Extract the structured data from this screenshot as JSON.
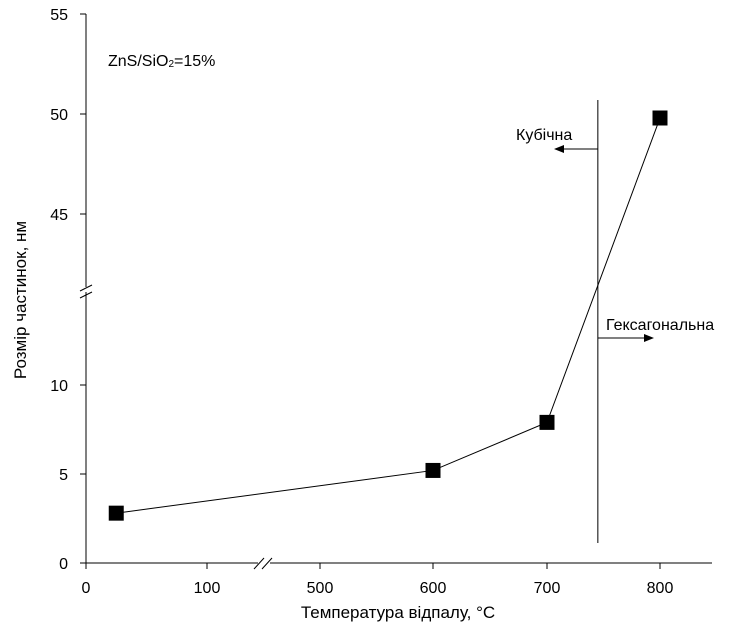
{
  "chart_data": {
    "type": "line",
    "title": "",
    "xlabel": "Температура відпалу, °C",
    "ylabel": "Розмір частинок, нм",
    "x_ticks": [
      "0",
      "100",
      "500",
      "600",
      "700",
      "800"
    ],
    "x_axis_break": "between 100 and 500",
    "y_ticks_lower": [
      "0",
      "5",
      "10"
    ],
    "y_ticks_upper": [
      "45",
      "50",
      "55"
    ],
    "y_axis_break": "between 10 and 45",
    "sample_label": "ZnS/SiO",
    "sample_label_subscript": "2",
    "sample_label_suffix": "=15%",
    "phase_boundary": {
      "x": 745,
      "left_label": "Кубічна",
      "right_label": "Гексагональна"
    },
    "series": [
      {
        "marker": "square",
        "color": "#000000",
        "x": [
          25,
          600,
          700,
          800
        ],
        "y": [
          2.8,
          5.2,
          7.9,
          49.8
        ]
      }
    ],
    "grid": false,
    "legend": "none"
  }
}
